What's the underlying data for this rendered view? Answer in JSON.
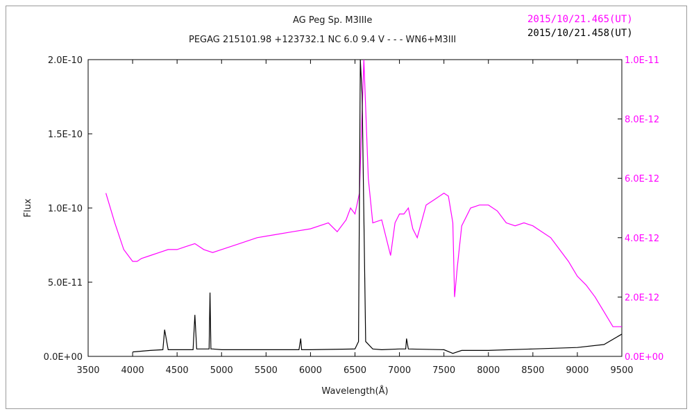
{
  "chart_data": {
    "type": "line",
    "title": "AG Peg    Sp. M3IIIe",
    "subtitle": "PEGAG 215101.98 +123732.1 NC 6.0 9.4 V - - - WN6+M3III",
    "legend": [
      {
        "label": "2015/10/21.465(UT)",
        "color": "#ff00ff"
      },
      {
        "label": "2015/10/21.458(UT)",
        "color": "#000000"
      }
    ],
    "legend_position": "top-right",
    "xlabel": "Wavelength(Å)",
    "ylabel": "Flux",
    "xlim": [
      3500,
      9500
    ],
    "ylim_left": [
      0,
      2e-10
    ],
    "ylim_right": [
      0,
      1e-11
    ],
    "x_ticks": [
      "3500",
      "4000",
      "4500",
      "5000",
      "5500",
      "6000",
      "6500",
      "7000",
      "7500",
      "8000",
      "8500",
      "9000",
      "9500"
    ],
    "y_ticks_left": [
      "0.0E+00",
      "5.0E-11",
      "1.0E-10",
      "1.5E-10",
      "2.0E-10"
    ],
    "y_ticks_right": [
      "0.0E+00",
      "2.0E-12",
      "4.0E-12",
      "6.0E-12",
      "8.0E-12",
      "1.0E-11"
    ],
    "grid": false,
    "series": [
      {
        "name": "2015/10/21.465(UT)",
        "axis": "right",
        "color": "#ff00ff",
        "x": [
          3700,
          3800,
          3900,
          4000,
          4050,
          4100,
          4200,
          4300,
          4400,
          4500,
          4600,
          4700,
          4800,
          4900,
          5000,
          5200,
          5400,
          5600,
          5800,
          6000,
          6200,
          6300,
          6400,
          6450,
          6500,
          6550,
          6600,
          6650,
          6700,
          6800,
          6900,
          6950,
          7000,
          7050,
          7100,
          7150,
          7200,
          7300,
          7400,
          7500,
          7550,
          7600,
          7620,
          7650,
          7700,
          7800,
          7900,
          8000,
          8100,
          8200,
          8300,
          8400,
          8500,
          8600,
          8700,
          8800,
          8900,
          9000,
          9100,
          9200,
          9300,
          9400,
          9500
        ],
        "y": [
          5.5e-12,
          4.5e-12,
          3.6e-12,
          3.2e-12,
          3.2e-12,
          3.3e-12,
          3.4e-12,
          3.5e-12,
          3.6e-12,
          3.6e-12,
          3.7e-12,
          3.8e-12,
          3.6e-12,
          3.5e-12,
          3.6e-12,
          3.8e-12,
          4e-12,
          4.1e-12,
          4.2e-12,
          4.3e-12,
          4.5e-12,
          4.2e-12,
          4.6e-12,
          5e-12,
          4.8e-12,
          5.5e-12,
          1e-11,
          6e-12,
          4.5e-12,
          4.6e-12,
          3.4e-12,
          4.5e-12,
          4.8e-12,
          4.8e-12,
          5e-12,
          4.3e-12,
          4e-12,
          5.1e-12,
          5.3e-12,
          5.5e-12,
          5.4e-12,
          4.5e-12,
          2e-12,
          3e-12,
          4.4e-12,
          5e-12,
          5.1e-12,
          5.1e-12,
          4.9e-12,
          4.5e-12,
          4.4e-12,
          4.5e-12,
          4.4e-12,
          4.2e-12,
          4e-12,
          3.6e-12,
          3.2e-12,
          2.7e-12,
          2.4e-12,
          2e-12,
          1.5e-12,
          1e-12,
          1e-12
        ]
      },
      {
        "name": "2015/10/21.458(UT)",
        "axis": "left",
        "color": "#000000",
        "x": [
          4000,
          4100,
          4200,
          4340,
          4360,
          4400,
          4600,
          4680,
          4700,
          4720,
          4800,
          4860,
          4870,
          4880,
          4900,
          5000,
          5500,
          5870,
          5890,
          5900,
          6000,
          6500,
          6540,
          6560,
          6580,
          6620,
          6700,
          6800,
          7000,
          7070,
          7080,
          7100,
          7500,
          7600,
          7700,
          8000,
          8500,
          9000,
          9300,
          9500
        ],
        "y": [
          3e-12,
          3.5e-12,
          4e-12,
          4.5e-12,
          1.8e-11,
          4.5e-12,
          4.5e-12,
          4.5e-12,
          2.8e-11,
          5e-12,
          5e-12,
          5e-12,
          4.3e-11,
          5e-12,
          5e-12,
          4.5e-12,
          4.5e-12,
          4.5e-12,
          1.2e-11,
          4.5e-12,
          4.5e-12,
          5e-12,
          1e-11,
          2e-10,
          1.76e-10,
          1e-11,
          5e-12,
          4.5e-12,
          5e-12,
          5e-12,
          1.2e-11,
          5e-12,
          4.5e-12,
          2e-12,
          4e-12,
          4e-12,
          5e-12,
          6e-12,
          8e-12,
          1.5e-11
        ]
      }
    ]
  }
}
